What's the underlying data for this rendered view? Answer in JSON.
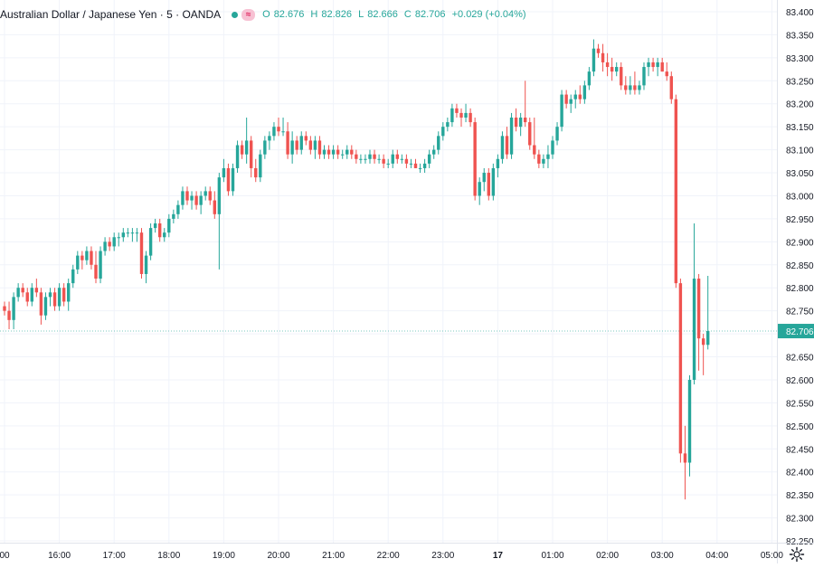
{
  "legend": {
    "title": "Australian Dollar / Japanese Yen · 5 · OANDA",
    "open_label": "O",
    "open": "82.676",
    "high_label": "H",
    "high": "82.826",
    "low_label": "L",
    "low": "82.666",
    "close_label": "C",
    "close": "82.706",
    "change": "+0.029 (+0.04%)",
    "wave_icon": "≈"
  },
  "colors": {
    "up": "#26a69a",
    "down": "#ef5350",
    "grid": "#f0f3fa",
    "axis_text": "#131722",
    "price_line": "#26a69a"
  },
  "chart_data": {
    "type": "candlestick",
    "title": "Australian Dollar / Japanese Yen · 5 · OANDA",
    "ylim": [
      82.23,
      83.45
    ],
    "y_ticks": [
      "83.400",
      "83.350",
      "83.300",
      "83.250",
      "83.200",
      "83.150",
      "83.100",
      "83.050",
      "83.000",
      "82.950",
      "82.900",
      "82.850",
      "82.800",
      "82.750",
      "82.700",
      "82.650",
      "82.600",
      "82.550",
      "82.500",
      "82.450",
      "82.400",
      "82.350",
      "82.300",
      "82.250"
    ],
    "x_ticks": [
      {
        "label": "00",
        "idx": 0
      },
      {
        "label": "16:00",
        "idx": 12
      },
      {
        "label": "17:00",
        "idx": 24
      },
      {
        "label": "18:00",
        "idx": 36
      },
      {
        "label": "19:00",
        "idx": 48
      },
      {
        "label": "20:00",
        "idx": 60
      },
      {
        "label": "21:00",
        "idx": 72
      },
      {
        "label": "22:00",
        "idx": 84
      },
      {
        "label": "23:00",
        "idx": 96
      },
      {
        "label": "17",
        "idx": 108
      },
      {
        "label": "01:00",
        "idx": 120
      },
      {
        "label": "02:00",
        "idx": 132
      },
      {
        "label": "03:00",
        "idx": 144
      },
      {
        "label": "04:00",
        "idx": 156
      },
      {
        "label": "05:00",
        "idx": 168
      }
    ],
    "last_price": "82.706",
    "last_price_value": 82.706,
    "candles": [
      [
        82.76,
        82.77,
        82.74,
        82.75
      ],
      [
        82.75,
        82.77,
        82.71,
        82.73
      ],
      [
        82.73,
        82.79,
        82.71,
        82.78
      ],
      [
        82.78,
        82.81,
        82.77,
        82.8
      ],
      [
        82.8,
        82.81,
        82.78,
        82.79
      ],
      [
        82.79,
        82.8,
        82.76,
        82.77
      ],
      [
        82.77,
        82.81,
        82.76,
        82.8
      ],
      [
        82.8,
        82.82,
        82.78,
        82.79
      ],
      [
        82.79,
        82.8,
        82.72,
        82.74
      ],
      [
        82.74,
        82.79,
        82.73,
        82.78
      ],
      [
        82.78,
        82.8,
        82.76,
        82.79
      ],
      [
        82.79,
        82.8,
        82.75,
        82.76
      ],
      [
        82.76,
        82.81,
        82.75,
        82.8
      ],
      [
        82.8,
        82.81,
        82.76,
        82.77
      ],
      [
        82.77,
        82.82,
        82.75,
        82.81
      ],
      [
        82.81,
        82.85,
        82.8,
        82.84
      ],
      [
        82.84,
        82.88,
        82.83,
        82.87
      ],
      [
        82.87,
        82.88,
        82.84,
        82.86
      ],
      [
        82.86,
        82.89,
        82.85,
        82.88
      ],
      [
        82.88,
        82.89,
        82.84,
        82.85
      ],
      [
        82.85,
        82.88,
        82.81,
        82.82
      ],
      [
        82.82,
        82.89,
        82.81,
        82.88
      ],
      [
        82.88,
        82.91,
        82.87,
        82.9
      ],
      [
        82.9,
        82.91,
        82.88,
        82.89
      ],
      [
        82.89,
        82.92,
        82.88,
        82.91
      ],
      [
        82.91,
        82.92,
        82.89,
        82.91
      ],
      [
        82.91,
        82.93,
        82.9,
        82.92
      ],
      [
        82.92,
        82.93,
        82.91,
        82.92
      ],
      [
        82.92,
        82.93,
        82.9,
        82.92
      ],
      [
        82.92,
        82.93,
        82.9,
        82.92
      ],
      [
        82.92,
        82.93,
        82.82,
        82.83
      ],
      [
        82.83,
        82.88,
        82.81,
        82.87
      ],
      [
        82.87,
        82.94,
        82.86,
        82.93
      ],
      [
        82.93,
        82.95,
        82.92,
        82.94
      ],
      [
        82.94,
        82.95,
        82.9,
        82.91
      ],
      [
        82.91,
        82.93,
        82.9,
        82.92
      ],
      [
        82.92,
        82.96,
        82.91,
        82.95
      ],
      [
        82.95,
        82.97,
        82.94,
        82.96
      ],
      [
        82.96,
        82.99,
        82.95,
        82.98
      ],
      [
        82.98,
        83.02,
        82.97,
        83.01
      ],
      [
        83.01,
        83.02,
        82.98,
        82.99
      ],
      [
        82.99,
        83.01,
        82.97,
        83.0
      ],
      [
        83.0,
        83.01,
        82.97,
        82.98
      ],
      [
        82.98,
        83.01,
        82.96,
        83.0
      ],
      [
        83.0,
        83.02,
        82.99,
        83.01
      ],
      [
        83.01,
        83.02,
        82.98,
        82.99
      ],
      [
        82.99,
        83.01,
        82.95,
        82.96
      ],
      [
        82.96,
        83.05,
        82.84,
        83.04
      ],
      [
        83.04,
        83.08,
        83.03,
        83.06
      ],
      [
        83.06,
        83.07,
        83.0,
        83.01
      ],
      [
        83.01,
        83.07,
        83.0,
        83.06
      ],
      [
        83.06,
        83.12,
        83.05,
        83.11
      ],
      [
        83.11,
        83.12,
        83.08,
        83.09
      ],
      [
        83.09,
        83.17,
        83.07,
        83.12
      ],
      [
        83.12,
        83.13,
        83.04,
        83.06
      ],
      [
        83.06,
        83.08,
        83.03,
        83.04
      ],
      [
        83.04,
        83.1,
        83.03,
        83.09
      ],
      [
        83.09,
        83.13,
        83.08,
        83.12
      ],
      [
        83.12,
        83.14,
        83.1,
        83.13
      ],
      [
        83.13,
        83.16,
        83.12,
        83.15
      ],
      [
        83.15,
        83.17,
        83.13,
        83.14
      ],
      [
        83.14,
        83.17,
        83.13,
        83.14
      ],
      [
        83.14,
        83.16,
        83.08,
        83.09
      ],
      [
        83.09,
        83.14,
        83.07,
        83.12
      ],
      [
        83.12,
        83.13,
        83.09,
        83.1
      ],
      [
        83.1,
        83.14,
        83.09,
        83.13
      ],
      [
        83.13,
        83.14,
        83.11,
        83.12
      ],
      [
        83.12,
        83.13,
        83.09,
        83.1
      ],
      [
        83.1,
        83.13,
        83.08,
        83.12
      ],
      [
        83.12,
        83.13,
        83.08,
        83.09
      ],
      [
        83.09,
        83.11,
        83.08,
        83.1
      ],
      [
        83.1,
        83.11,
        83.08,
        83.09
      ],
      [
        83.09,
        83.11,
        83.08,
        83.1
      ],
      [
        83.1,
        83.11,
        83.08,
        83.09
      ],
      [
        83.09,
        83.1,
        83.08,
        83.09
      ],
      [
        83.09,
        83.11,
        83.08,
        83.1
      ],
      [
        83.1,
        83.11,
        83.08,
        83.09
      ],
      [
        83.09,
        83.1,
        83.07,
        83.08
      ],
      [
        83.08,
        83.09,
        83.07,
        83.08
      ],
      [
        83.08,
        83.09,
        83.07,
        83.08
      ],
      [
        83.08,
        83.1,
        83.07,
        83.09
      ],
      [
        83.09,
        83.1,
        83.07,
        83.08
      ],
      [
        83.08,
        83.09,
        83.07,
        83.08
      ],
      [
        83.08,
        83.09,
        83.06,
        83.07
      ],
      [
        83.07,
        83.08,
        83.06,
        83.07
      ],
      [
        83.07,
        83.1,
        83.06,
        83.09
      ],
      [
        83.09,
        83.1,
        83.07,
        83.08
      ],
      [
        83.08,
        83.09,
        83.07,
        83.08
      ],
      [
        83.08,
        83.09,
        83.06,
        83.07
      ],
      [
        83.07,
        83.08,
        83.06,
        83.07
      ],
      [
        83.07,
        83.08,
        83.06,
        83.06
      ],
      [
        83.06,
        83.07,
        83.05,
        83.06
      ],
      [
        83.06,
        83.08,
        83.05,
        83.07
      ],
      [
        83.07,
        83.1,
        83.06,
        83.09
      ],
      [
        83.09,
        83.11,
        83.08,
        83.1
      ],
      [
        83.1,
        83.14,
        83.09,
        83.13
      ],
      [
        83.13,
        83.16,
        83.12,
        83.15
      ],
      [
        83.15,
        83.17,
        83.14,
        83.16
      ],
      [
        83.16,
        83.2,
        83.15,
        83.19
      ],
      [
        83.19,
        83.2,
        83.17,
        83.18
      ],
      [
        83.18,
        83.19,
        83.15,
        83.17
      ],
      [
        83.17,
        83.2,
        83.16,
        83.18
      ],
      [
        83.18,
        83.19,
        83.15,
        83.16
      ],
      [
        83.16,
        83.17,
        82.99,
        83.0
      ],
      [
        83.0,
        83.04,
        82.98,
        83.03
      ],
      [
        83.03,
        83.06,
        83.01,
        83.05
      ],
      [
        83.05,
        83.06,
        82.99,
        83.0
      ],
      [
        83.0,
        83.07,
        82.99,
        83.06
      ],
      [
        83.06,
        83.09,
        83.04,
        83.08
      ],
      [
        83.08,
        83.14,
        83.07,
        83.13
      ],
      [
        83.13,
        83.15,
        83.08,
        83.09
      ],
      [
        83.09,
        83.18,
        83.08,
        83.17
      ],
      [
        83.17,
        83.19,
        83.14,
        83.15
      ],
      [
        83.15,
        83.18,
        83.13,
        83.17
      ],
      [
        83.17,
        83.25,
        83.15,
        83.16
      ],
      [
        83.16,
        83.17,
        83.1,
        83.11
      ],
      [
        83.11,
        83.17,
        83.08,
        83.09
      ],
      [
        83.09,
        83.1,
        83.06,
        83.07
      ],
      [
        83.07,
        83.09,
        83.06,
        83.08
      ],
      [
        83.08,
        83.11,
        83.06,
        83.09
      ],
      [
        83.09,
        83.13,
        83.08,
        83.12
      ],
      [
        83.12,
        83.16,
        83.11,
        83.15
      ],
      [
        83.15,
        83.23,
        83.14,
        83.22
      ],
      [
        83.22,
        83.23,
        83.19,
        83.2
      ],
      [
        83.2,
        83.22,
        83.18,
        83.21
      ],
      [
        83.21,
        83.23,
        83.19,
        83.22
      ],
      [
        83.22,
        83.24,
        83.2,
        83.21
      ],
      [
        83.21,
        83.25,
        83.2,
        83.24
      ],
      [
        83.24,
        83.28,
        83.23,
        83.27
      ],
      [
        83.27,
        83.34,
        83.26,
        83.32
      ],
      [
        83.32,
        83.33,
        83.3,
        83.31
      ],
      [
        83.31,
        83.33,
        83.27,
        83.29
      ],
      [
        83.29,
        83.31,
        83.26,
        83.28
      ],
      [
        83.28,
        83.3,
        83.25,
        83.27
      ],
      [
        83.27,
        83.29,
        83.26,
        83.28
      ],
      [
        83.28,
        83.29,
        83.23,
        83.24
      ],
      [
        83.24,
        83.26,
        83.22,
        83.23
      ],
      [
        83.23,
        83.26,
        83.22,
        83.24
      ],
      [
        83.24,
        83.27,
        83.22,
        83.23
      ],
      [
        83.23,
        83.25,
        83.22,
        83.24
      ],
      [
        83.24,
        83.29,
        83.23,
        83.28
      ],
      [
        83.28,
        83.3,
        83.26,
        83.29
      ],
      [
        83.29,
        83.3,
        83.27,
        83.28
      ],
      [
        83.28,
        83.3,
        83.26,
        83.29
      ],
      [
        83.29,
        83.3,
        83.27,
        83.27
      ],
      [
        83.27,
        83.29,
        83.25,
        83.26
      ],
      [
        83.26,
        83.27,
        83.2,
        83.21
      ],
      [
        83.21,
        83.22,
        82.8,
        82.81
      ],
      [
        82.81,
        82.82,
        82.42,
        82.44
      ],
      [
        82.44,
        82.5,
        82.34,
        82.42
      ],
      [
        82.42,
        82.61,
        82.39,
        82.6
      ],
      [
        82.6,
        82.94,
        82.59,
        82.82
      ],
      [
        82.82,
        82.83,
        82.62,
        82.69
      ],
      [
        82.69,
        82.7,
        82.61,
        82.676
      ],
      [
        82.676,
        82.826,
        82.666,
        82.706
      ]
    ]
  }
}
